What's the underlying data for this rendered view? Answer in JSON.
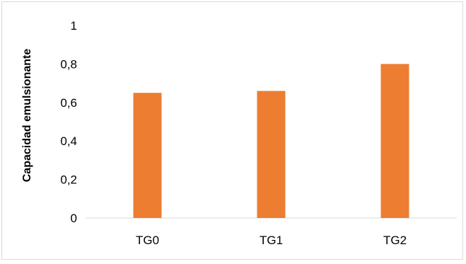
{
  "chart_data": {
    "type": "bar",
    "title": "",
    "xlabel": "",
    "ylabel": "Capacidad emulsionante",
    "categories": [
      "TG0",
      "TG1",
      "TG2"
    ],
    "values": [
      0.65,
      0.66,
      0.8
    ],
    "ylim": [
      0,
      1
    ],
    "yticks": [
      "0",
      "0,2",
      "0,4",
      "0,6",
      "0,8",
      "1"
    ],
    "grid": false,
    "legend": "none",
    "bar_color": "#ED7D31"
  }
}
